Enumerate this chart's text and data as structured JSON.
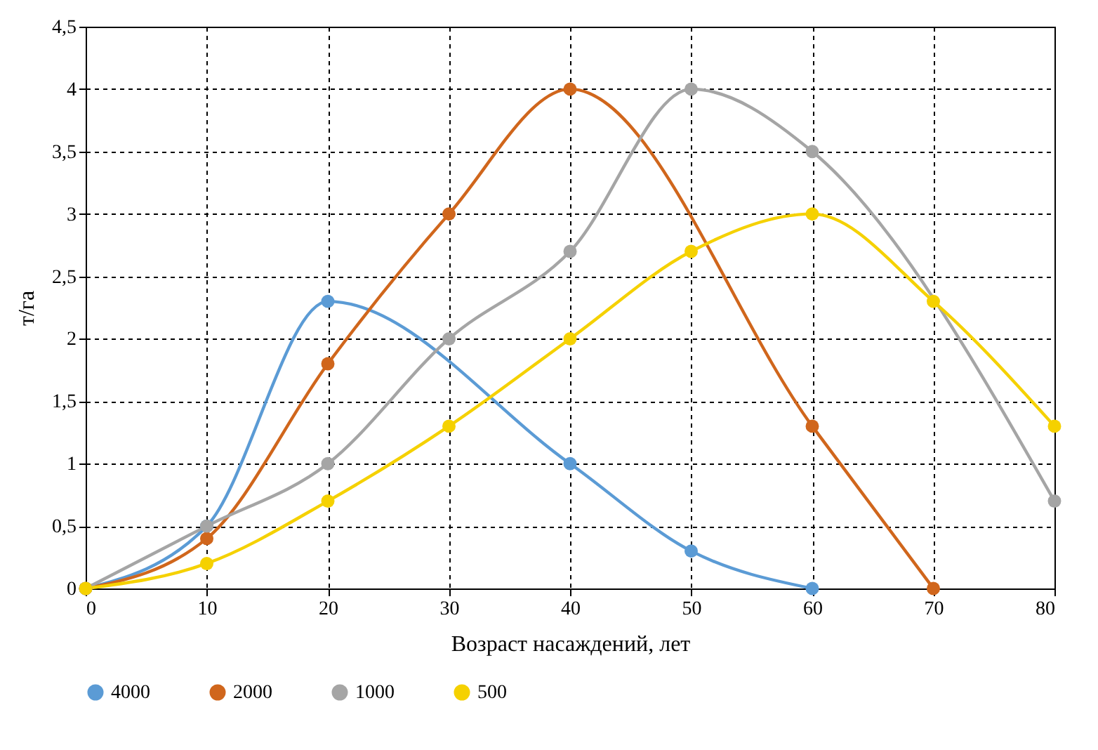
{
  "chart_data": {
    "type": "line",
    "xlabel": "Возраст насаждений, лет",
    "ylabel": "т/га",
    "xlim": [
      0,
      80
    ],
    "xticks": [
      0,
      10,
      20,
      30,
      40,
      50,
      60,
      70,
      80
    ],
    "ylim": [
      0,
      4.5
    ],
    "yticks": [
      0,
      {
        "value": 0.5,
        "label": "0,5"
      },
      1,
      {
        "value": 1.5,
        "label": "1,5"
      },
      2,
      {
        "value": 2.5,
        "label": "2,5"
      },
      3,
      {
        "value": 3.5,
        "label": "3,5"
      },
      4,
      {
        "value": 4.5,
        "label": "4,5"
      }
    ],
    "grid": true,
    "legend": "bottom",
    "marker": "circle",
    "line_style": "solid",
    "series": [
      {
        "name": "4000",
        "color": "#5b9bd5",
        "x": [
          0,
          10,
          20,
          40,
          50,
          60
        ],
        "values": [
          0,
          0.5,
          2.3,
          1.0,
          0.3,
          0
        ]
      },
      {
        "name": "2000",
        "color": "#d0661c",
        "x": [
          0,
          10,
          20,
          30,
          40,
          60,
          70
        ],
        "values": [
          0,
          0.4,
          1.8,
          3.0,
          4.0,
          1.3,
          0
        ]
      },
      {
        "name": "1000",
        "color": "#a5a5a5",
        "x": [
          0,
          10,
          20,
          30,
          40,
          50,
          60,
          80
        ],
        "values": [
          0,
          0.5,
          1.0,
          2.0,
          2.7,
          4.0,
          3.5,
          0.7
        ]
      },
      {
        "name": "500",
        "color": "#f5d100",
        "x": [
          0,
          10,
          20,
          30,
          40,
          50,
          60,
          70,
          80
        ],
        "values": [
          0,
          0.2,
          0.7,
          1.3,
          2.0,
          2.7,
          3.0,
          2.3,
          1.3
        ]
      }
    ]
  }
}
